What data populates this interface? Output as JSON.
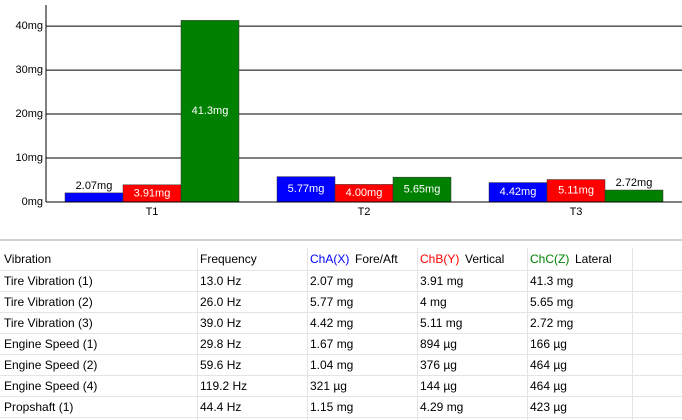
{
  "chart_data": {
    "type": "bar",
    "categories": [
      "T1",
      "T2",
      "T3"
    ],
    "series": [
      {
        "color": "#0000ff",
        "values": [
          2.07,
          5.77,
          4.42
        ],
        "value_labels": [
          "2.07mg",
          "5.77mg",
          "4.42mg"
        ]
      },
      {
        "color": "#ff0000",
        "values": [
          3.91,
          4.0,
          5.11
        ],
        "value_labels": [
          "3.91mg",
          "4.00mg",
          "5.11mg"
        ]
      },
      {
        "color": "#008000",
        "values": [
          41.3,
          5.65,
          2.72
        ],
        "value_labels": [
          "41.3mg",
          "5.65mg",
          "2.72mg"
        ]
      }
    ],
    "ylim": [
      0,
      44.8
    ],
    "yticks": [
      {
        "value": 0,
        "label": "0mg"
      },
      {
        "value": 10,
        "label": "10mg"
      },
      {
        "value": 20,
        "label": "20mg"
      },
      {
        "value": 30,
        "label": "30mg"
      },
      {
        "value": 40,
        "label": "40mg"
      }
    ],
    "grid": true
  },
  "table": {
    "columns": [
      "Vibration",
      "Frequency"
    ],
    "channels": [
      {
        "name": "ChA(X)",
        "label": "Fore/Aft",
        "color": "#0000ff"
      },
      {
        "name": "ChB(Y)",
        "label": "Vertical",
        "color": "#ff0000"
      },
      {
        "name": "ChC(Z)",
        "label": "Lateral",
        "color": "#008000"
      }
    ],
    "rows": [
      [
        "Tire Vibration (1)",
        "13.0 Hz",
        "2.07 mg",
        "3.91 mg",
        "41.3 mg"
      ],
      [
        "Tire Vibration (2)",
        "26.0 Hz",
        "5.77 mg",
        "4 mg",
        "5.65 mg"
      ],
      [
        "Tire Vibration (3)",
        "39.0 Hz",
        "4.42 mg",
        "5.11 mg",
        "2.72 mg"
      ],
      [
        "Engine Speed (1)",
        "29.8 Hz",
        "1.67 mg",
        "894 µg",
        "166 µg"
      ],
      [
        "Engine Speed (2)",
        "59.6 Hz",
        "1.04 mg",
        "376 µg",
        "464 µg"
      ],
      [
        "Engine Speed (4)",
        "119.2 Hz",
        "321 µg",
        "144 µg",
        "464 µg"
      ],
      [
        "Propshaft (1)",
        "44.4 Hz",
        "1.15 mg",
        "4.29 mg",
        "423 µg"
      ]
    ]
  }
}
